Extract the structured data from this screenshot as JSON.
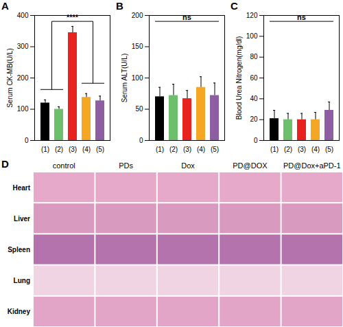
{
  "chart_data": [
    {
      "type": "bar",
      "panel_label": "A",
      "y_label": "Serum CK-MB(U/L)",
      "categories": [
        "(1)",
        "(2)",
        "(3)",
        "(4)",
        "(5)"
      ],
      "values": [
        120,
        100,
        345,
        138,
        127
      ],
      "errors": [
        10,
        8,
        20,
        12,
        15
      ],
      "colors": [
        "#000000",
        "#6cc06c",
        "#e8231f",
        "#f5a623",
        "#8e5ea2"
      ],
      "ylim": [
        0,
        400
      ],
      "yticks": [
        0,
        100,
        200,
        300,
        400
      ],
      "significance": {
        "text": "****",
        "groups": [
          [
            "(1)",
            "(2)"
          ],
          [
            "(4)",
            "(5)"
          ]
        ]
      }
    },
    {
      "type": "bar",
      "panel_label": "B",
      "y_label": "Serum ALT(U/L)",
      "categories": [
        "(1)",
        "(2)",
        "(3)",
        "(4)",
        "(5)"
      ],
      "values": [
        70,
        72,
        67,
        85,
        72
      ],
      "errors": [
        15,
        18,
        13,
        17,
        20
      ],
      "colors": [
        "#000000",
        "#6cc06c",
        "#e8231f",
        "#f5a623",
        "#8e5ea2"
      ],
      "ylim": [
        0,
        200
      ],
      "yticks": [
        0,
        50,
        100,
        150,
        200
      ],
      "significance": {
        "text": "ns",
        "groups": [
          [
            "(1)",
            "(2)",
            "(3)",
            "(4)",
            "(5)"
          ]
        ]
      }
    },
    {
      "type": "bar",
      "panel_label": "C",
      "y_label": "Blood Urea Nitrogen(mg/dl)",
      "categories": [
        "(1)",
        "(2)",
        "(3)",
        "(4)",
        "(5)"
      ],
      "values": [
        21,
        20,
        20,
        20,
        29
      ],
      "errors": [
        8,
        6,
        6,
        7,
        8
      ],
      "colors": [
        "#000000",
        "#6cc06c",
        "#e8231f",
        "#f5a623",
        "#8e5ea2"
      ],
      "ylim": [
        0,
        120
      ],
      "yticks": [
        0,
        20,
        40,
        60,
        80,
        100,
        120
      ],
      "significance": {
        "text": "ns",
        "groups": [
          [
            "(1)",
            "(2)",
            "(3)",
            "(4)",
            "(5)"
          ]
        ]
      }
    }
  ],
  "panel_D": {
    "label": "D",
    "columns": [
      "control",
      "PDs",
      "Dox",
      "PD@DOX",
      "PD@Dox+aPD-1"
    ],
    "rows": [
      "Heart",
      "Liver",
      "Spleen",
      "Lung",
      "Kidney"
    ]
  }
}
